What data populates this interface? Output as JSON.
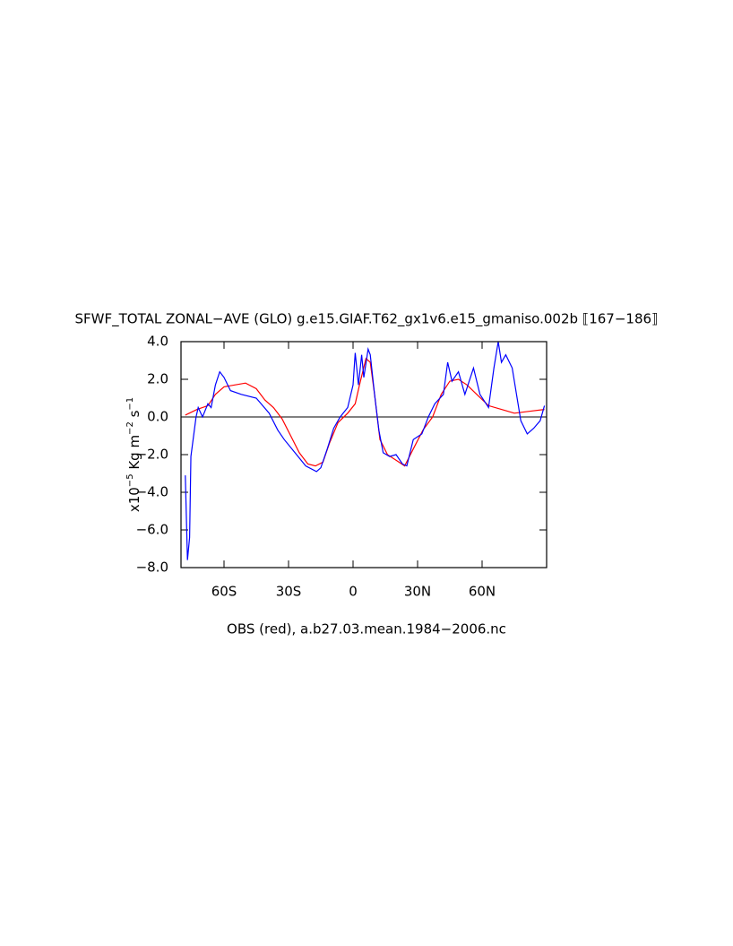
{
  "chart_data": {
    "type": "line",
    "title": "SFWF_TOTAL ZONAL−AVE (GLO) g.e15.GIAF.T62_gx1v6.e15_gmaniso.002b ⟦167−186⟧",
    "ylabel": [
      "x10",
      "−5",
      " Kg m",
      "−2",
      " s",
      "−1"
    ],
    "xlabel": "OBS (red), a.b27.03.mean.1984−2006.nc",
    "xlim": [
      -80,
      90
    ],
    "ylim": [
      -8,
      4
    ],
    "xticks": [
      {
        "value": -60,
        "label": "60S"
      },
      {
        "value": -30,
        "label": "30S"
      },
      0,
      {
        "value": 30,
        "label": "30N"
      },
      {
        "value": 60,
        "label": "60N"
      }
    ],
    "yticks": [
      {
        "value": 4,
        "label": "4.0"
      },
      {
        "value": 2,
        "label": "2.0"
      },
      {
        "value": 0,
        "label": "0.0"
      },
      {
        "value": -2,
        "label": "−2.0"
      },
      {
        "value": -4,
        "label": "−4.0"
      },
      {
        "value": -6,
        "label": "−6.0"
      },
      {
        "value": -8,
        "label": "−8.0"
      }
    ],
    "hline": 0,
    "series": [
      {
        "color": "#0000ff",
        "x": [
          -78,
          -77,
          -76,
          -75.4,
          -73,
          -72,
          -70,
          -67.5,
          -66,
          -64,
          -62,
          -60,
          -57,
          -52,
          -45,
          -39,
          -35,
          -32,
          -27,
          -22,
          -17,
          -15,
          -12,
          -9,
          -6,
          -2.5,
          0,
          1,
          2.5,
          4,
          5,
          7,
          8,
          10,
          12,
          14,
          17,
          20,
          23,
          25,
          28,
          32,
          35,
          38,
          42,
          44,
          46,
          49,
          52,
          56,
          59,
          63,
          65.5,
          67.5,
          69,
          71,
          74,
          76,
          78,
          81,
          84,
          87,
          89
        ],
        "values": [
          -3.1,
          -7.6,
          -6.4,
          -2.1,
          0,
          0.5,
          0,
          0.7,
          0.5,
          1.7,
          2.4,
          2.1,
          1.4,
          1.2,
          1.0,
          0.2,
          -0.7,
          -1.2,
          -1.9,
          -2.6,
          -2.9,
          -2.7,
          -1.7,
          -0.6,
          0,
          0.5,
          1.7,
          3.4,
          1.7,
          3.3,
          2.1,
          3.6,
          3.3,
          1.2,
          -0.7,
          -1.9,
          -2.1,
          -2.0,
          -2.5,
          -2.6,
          -1.2,
          -0.9,
          0,
          0.7,
          1.2,
          2.9,
          1.9,
          2.4,
          1.2,
          2.6,
          1.2,
          0.5,
          2.6,
          4.0,
          2.9,
          3.3,
          2.6,
          1.2,
          -0.2,
          -0.9,
          -0.6,
          -0.2,
          0.6
        ]
      },
      {
        "color": "#ff0000",
        "x": [
          -78,
          -72.5,
          -67.5,
          -64,
          -60,
          -55,
          -50,
          -45,
          -41,
          -37,
          -33,
          -29,
          -25,
          -21,
          -17.5,
          -14,
          -11,
          -7,
          -2.5,
          1,
          3,
          6,
          8,
          10,
          12.5,
          16,
          20,
          24,
          28,
          32.5,
          37,
          41,
          45,
          49,
          53,
          57.5,
          63,
          69,
          75,
          82,
          89
        ],
        "values": [
          0.1,
          0.4,
          0.6,
          1.2,
          1.6,
          1.7,
          1.8,
          1.5,
          0.9,
          0.5,
          -0.1,
          -1.0,
          -1.9,
          -2.5,
          -2.6,
          -2.4,
          -1.4,
          -0.3,
          0.2,
          0.7,
          1.7,
          3.1,
          2.9,
          1.2,
          -1.2,
          -2.0,
          -2.3,
          -2.6,
          -1.7,
          -0.7,
          0,
          1.2,
          1.9,
          2.0,
          1.7,
          1.2,
          0.6,
          0.4,
          0.2,
          0.3,
          0.4
        ]
      }
    ]
  }
}
